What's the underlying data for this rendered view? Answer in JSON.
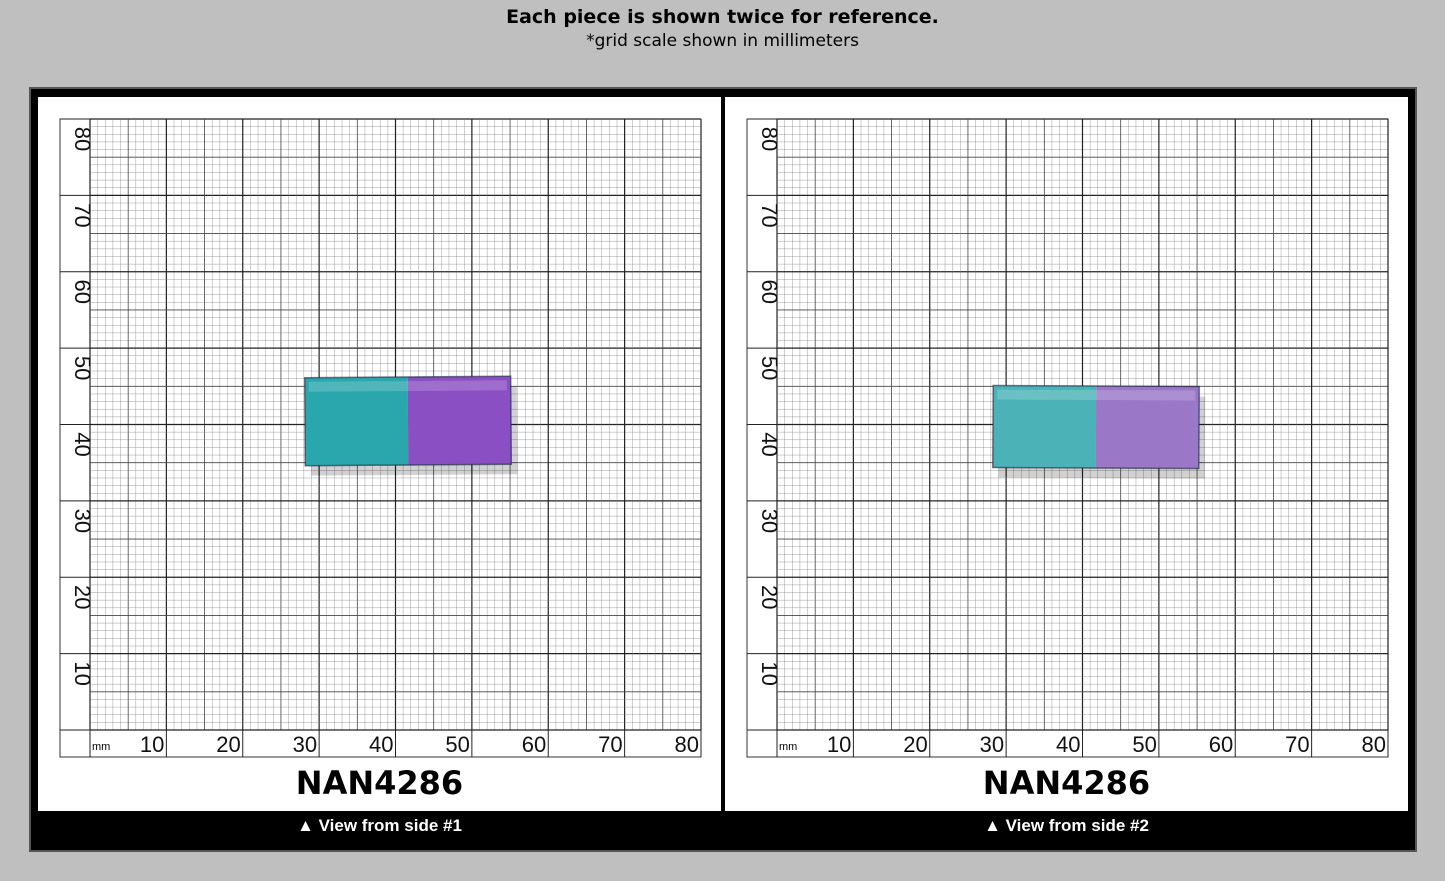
{
  "header": {
    "title": "Each piece is shown twice for reference.",
    "subtitle": "*grid scale shown in millimeters"
  },
  "grid": {
    "unit_label": "mm",
    "x_ticks": [
      "10",
      "20",
      "30",
      "40",
      "50",
      "60",
      "70",
      "80"
    ],
    "y_ticks": [
      "10",
      "20",
      "30",
      "40",
      "50",
      "60",
      "70",
      "80"
    ]
  },
  "panels": [
    {
      "code": "NAN4286",
      "caption": "▲ View from side #1",
      "colors": {
        "left": "#2aa7ad",
        "right": "#8a4fc3"
      }
    },
    {
      "code": "NAN4286",
      "caption": "▲ View from side #2",
      "colors": {
        "left": "#4bb3b7",
        "right": "#9a77c7"
      }
    }
  ]
}
